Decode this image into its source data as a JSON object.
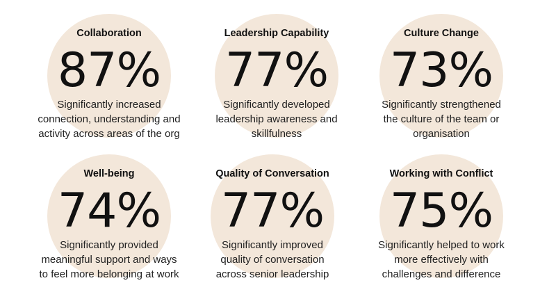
{
  "stats": [
    {
      "heading": "Collaboration",
      "percent": "87%",
      "description": "Significantly increased\nconnection, understanding and\nactivity across areas of the org"
    },
    {
      "heading": "Leadership Capability",
      "percent": "77%",
      "description": "Significantly developed\nleadership awareness and\nskillfulness"
    },
    {
      "heading": "Culture Change",
      "percent": "73%",
      "description": "Significantly  strengthened\nthe culture of the team or\norganisation"
    },
    {
      "heading": "Well-being",
      "percent": "74%",
      "description": "Significantly provided\nmeaningful support and ways\nto feel more belonging at work"
    },
    {
      "heading": "Quality of Conversation",
      "percent": "77%",
      "description": "Significantly improved\nquality of conversation\nacross senior leadership"
    },
    {
      "heading": "Working with Conflict",
      "percent": "75%",
      "description": "Significantly helped to work\nmore effectively with\nchallenges and difference"
    }
  ],
  "colors": {
    "circle": "#f3e7da",
    "text": "#111111"
  }
}
